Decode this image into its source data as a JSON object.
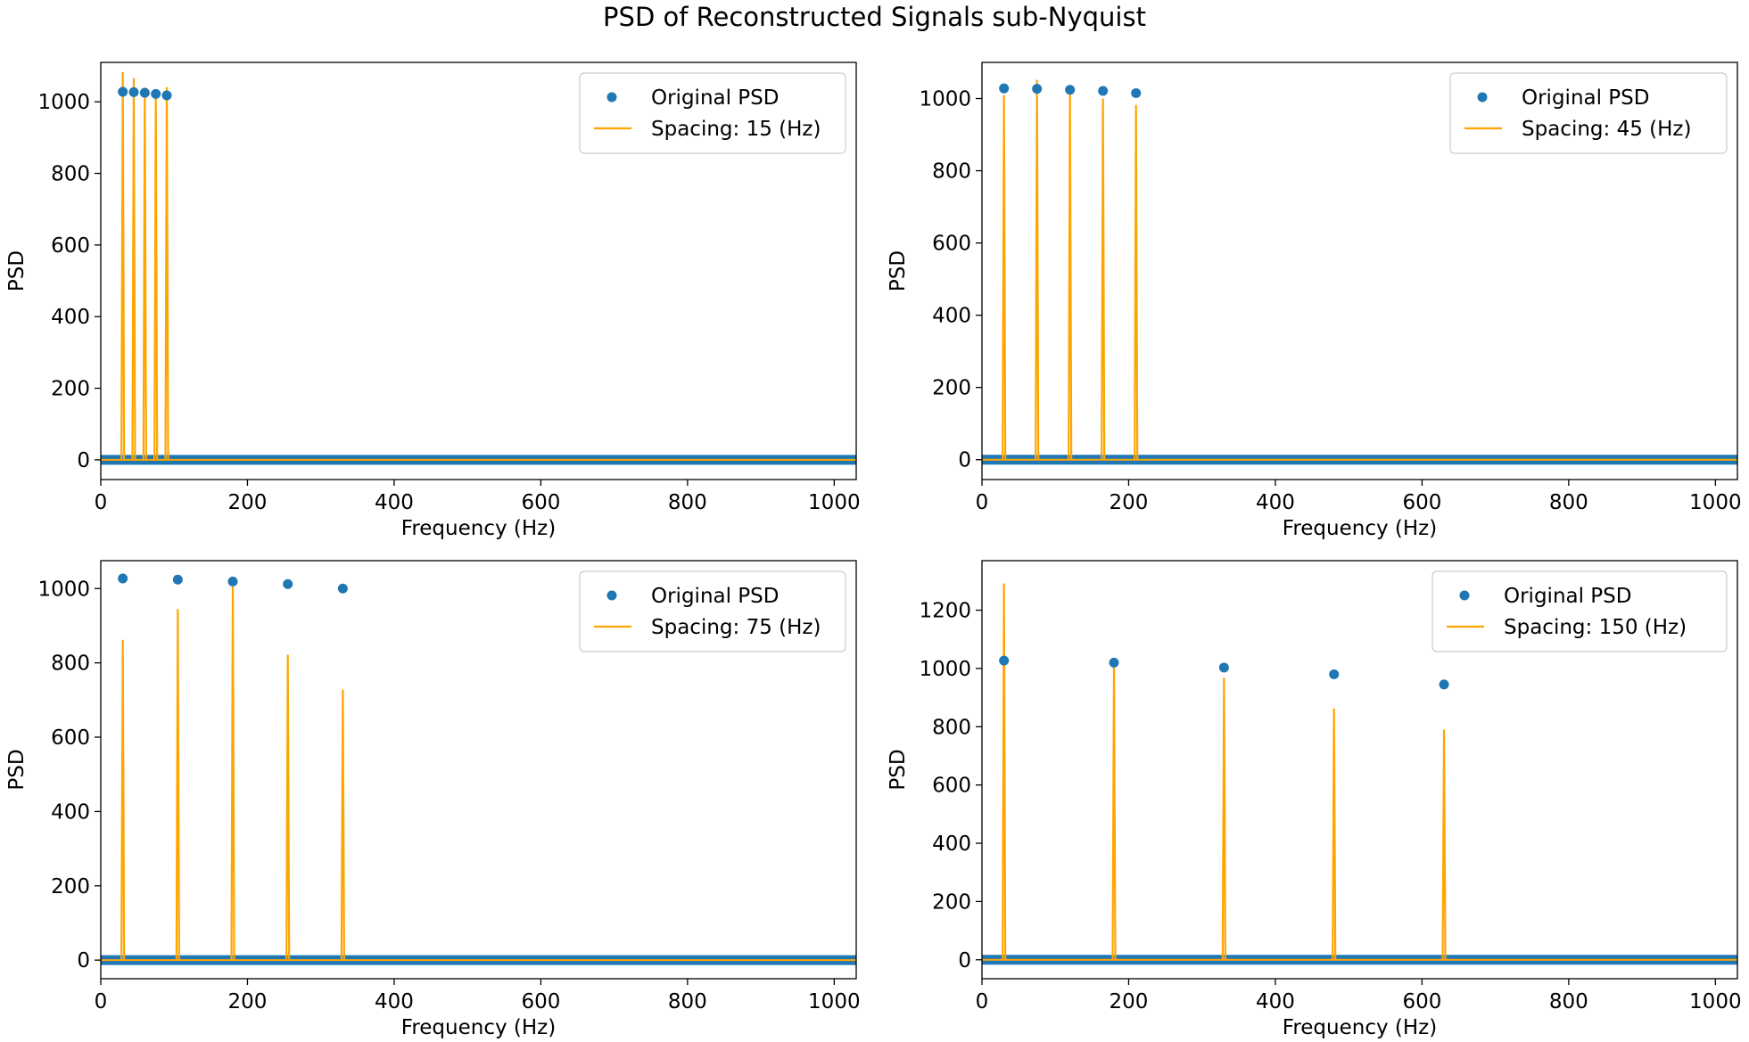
{
  "figure": {
    "title": "PSD of Reconstructed Signals sub-Nyquist"
  },
  "colors": {
    "original": "#1f77b4",
    "reconstructed": "#ffa500",
    "axes": "#000000"
  },
  "chart_data": [
    {
      "type": "line",
      "xlabel": "Frequency (Hz)",
      "ylabel": "PSD",
      "xlim": [
        0,
        1030
      ],
      "ylim": [
        -55,
        1110
      ],
      "xticks": [
        0,
        200,
        400,
        600,
        800,
        1000
      ],
      "yticks": [
        0,
        200,
        400,
        600,
        800,
        1000
      ],
      "legend_position": "top-right",
      "grid": false,
      "series": [
        {
          "name": "Original PSD",
          "kind": "scatter",
          "x": [
            30,
            45,
            60,
            75,
            90
          ],
          "y": [
            1028,
            1027,
            1025,
            1022,
            1018
          ],
          "baseline_y": 0
        },
        {
          "name": "Spacing: 15 (Hz)",
          "kind": "spikes",
          "x": [
            30,
            45,
            60,
            75,
            90
          ],
          "y": [
            1083,
            1066,
            1040,
            1029,
            1041
          ]
        }
      ]
    },
    {
      "type": "line",
      "xlabel": "Frequency (Hz)",
      "ylabel": "PSD",
      "xlim": [
        0,
        1030
      ],
      "ylim": [
        -55,
        1100
      ],
      "xticks": [
        0,
        200,
        400,
        600,
        800,
        1000
      ],
      "yticks": [
        0,
        200,
        400,
        600,
        800,
        1000
      ],
      "legend_position": "top-right",
      "grid": false,
      "series": [
        {
          "name": "Original PSD",
          "kind": "scatter",
          "x": [
            30,
            75,
            120,
            165,
            210
          ],
          "y": [
            1028,
            1027,
            1024,
            1021,
            1015
          ],
          "baseline_y": 0
        },
        {
          "name": "Spacing: 45 (Hz)",
          "kind": "spikes",
          "x": [
            30,
            75,
            120,
            165,
            210
          ],
          "y": [
            1010,
            1052,
            1015,
            1000,
            982
          ]
        }
      ]
    },
    {
      "type": "line",
      "xlabel": "Frequency (Hz)",
      "ylabel": "PSD",
      "xlim": [
        0,
        1030
      ],
      "ylim": [
        -50,
        1075
      ],
      "xticks": [
        0,
        200,
        400,
        600,
        800,
        1000
      ],
      "yticks": [
        0,
        200,
        400,
        600,
        800,
        1000
      ],
      "legend_position": "top-right",
      "grid": false,
      "series": [
        {
          "name": "Original PSD",
          "kind": "scatter",
          "x": [
            30,
            105,
            180,
            255,
            330
          ],
          "y": [
            1027,
            1024,
            1019,
            1012,
            1000
          ],
          "baseline_y": 0
        },
        {
          "name": "Spacing: 75 (Hz)",
          "kind": "spikes",
          "x": [
            30,
            105,
            180,
            255,
            330
          ],
          "y": [
            862,
            945,
            1005,
            822,
            728
          ]
        }
      ]
    },
    {
      "type": "line",
      "xlabel": "Frequency (Hz)",
      "ylabel": "PSD",
      "xlim": [
        0,
        1030
      ],
      "ylim": [
        -65,
        1370
      ],
      "xticks": [
        0,
        200,
        400,
        600,
        800,
        1000
      ],
      "yticks": [
        0,
        200,
        400,
        600,
        800,
        1000,
        1200
      ],
      "legend_position": "top-right",
      "grid": false,
      "series": [
        {
          "name": "Original PSD",
          "kind": "scatter",
          "x": [
            30,
            180,
            330,
            480,
            630
          ],
          "y": [
            1027,
            1020,
            1003,
            980,
            945
          ],
          "baseline_y": 0
        },
        {
          "name": "Spacing: 150 (Hz)",
          "kind": "spikes",
          "x": [
            30,
            180,
            330,
            480,
            630
          ],
          "y": [
            1292,
            1010,
            968,
            862,
            790
          ]
        }
      ]
    }
  ]
}
